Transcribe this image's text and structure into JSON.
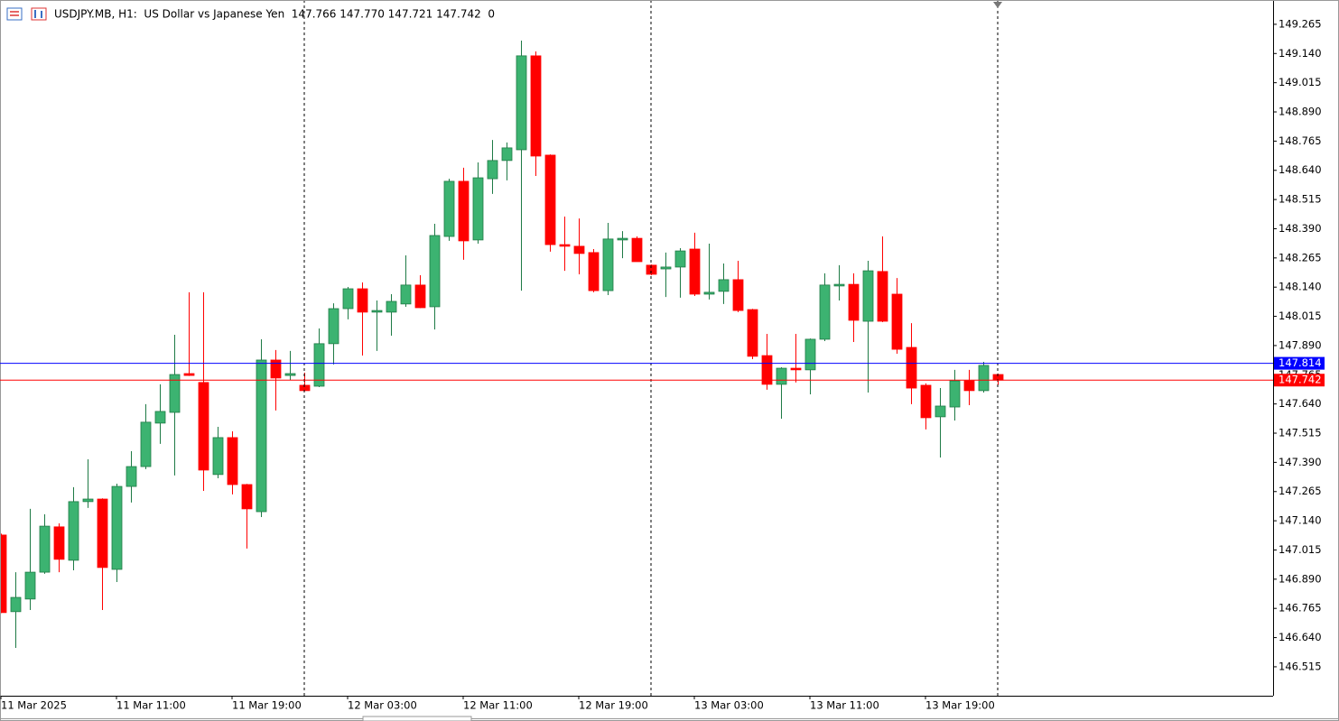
{
  "chart_data": {
    "type": "candlestick",
    "title": "USDJPY.MB, H1:  US Dollar vs Japanese Yen  147.766 147.770 147.721 147.742  0",
    "categories": [
      "11 Mar 2025",
      null,
      null,
      null,
      null,
      null,
      null,
      null,
      "11 Mar 11:00",
      null,
      null,
      null,
      null,
      null,
      null,
      null,
      "11 Mar 19:00",
      null,
      null,
      null,
      null,
      null,
      null,
      null,
      "12 Mar 03:00",
      null,
      null,
      null,
      null,
      null,
      null,
      null,
      "12 Mar 11:00",
      null,
      null,
      null,
      null,
      null,
      null,
      null,
      "12 Mar 19:00",
      null,
      null,
      null,
      null,
      null,
      null,
      null,
      "13 Mar 03:00",
      null,
      null,
      null,
      null,
      null,
      null,
      null,
      "13 Mar 11:00",
      null,
      null,
      null,
      null,
      null,
      null,
      null,
      "13 Mar 19:00",
      null,
      null,
      null,
      null,
      null
    ],
    "open": [
      147.079,
      146.751,
      146.805,
      146.92,
      147.114,
      146.971,
      147.222,
      147.233,
      146.932,
      147.287,
      147.372,
      147.558,
      147.604,
      147.77,
      147.732,
      147.338,
      147.496,
      147.295,
      147.179,
      147.828,
      147.762,
      147.72,
      147.716,
      147.898,
      148.048,
      148.133,
      148.033,
      148.033,
      148.068,
      148.149,
      148.056,
      148.357,
      148.593,
      148.342,
      148.604,
      148.682,
      148.728,
      149.13,
      148.705,
      148.322,
      148.315,
      148.288,
      148.125,
      148.342,
      148.349,
      148.234,
      148.218,
      148.226,
      148.303,
      148.11,
      148.122,
      148.172,
      148.044,
      147.847,
      147.724,
      147.793,
      147.786,
      147.917,
      148.145,
      148.152,
      147.994,
      148.207,
      148.11,
      147.882,
      147.72,
      147.585,
      147.627,
      147.739,
      147.697,
      147.766
    ],
    "high": [
      147.085,
      146.92,
      147.191,
      147.168,
      147.129,
      147.284,
      147.403,
      147.236,
      147.299,
      147.438,
      147.639,
      147.724,
      147.936,
      148.118,
      148.118,
      147.542,
      147.523,
      147.298,
      147.917,
      147.871,
      147.867,
      147.774,
      147.963,
      148.071,
      148.141,
      148.16,
      148.083,
      148.11,
      148.276,
      148.191,
      148.411,
      148.604,
      148.651,
      148.674,
      148.77,
      148.759,
      149.195,
      149.149,
      148.708,
      148.442,
      148.434,
      148.303,
      148.415,
      148.38,
      148.357,
      148.237,
      148.288,
      148.307,
      148.373,
      148.326,
      148.241,
      148.253,
      148.047,
      147.94,
      147.797,
      147.94,
      147.92,
      148.199,
      148.234,
      148.199,
      148.253,
      148.357,
      148.179,
      147.986,
      147.728,
      147.708,
      147.786,
      147.786,
      147.82,
      147.77
    ],
    "low": [
      146.745,
      146.596,
      146.758,
      146.913,
      146.92,
      146.928,
      147.195,
      146.758,
      146.878,
      147.218,
      147.361,
      147.469,
      147.334,
      147.76,
      147.268,
      147.322,
      147.253,
      147.021,
      147.156,
      147.612,
      147.743,
      147.695,
      147.712,
      147.809,
      148.002,
      147.847,
      147.867,
      147.932,
      148.056,
      148.05,
      147.959,
      148.338,
      148.257,
      148.326,
      148.539,
      148.597,
      148.125,
      148.616,
      148.292,
      148.21,
      148.195,
      148.118,
      148.106,
      148.264,
      148.249,
      148.191,
      148.098,
      148.095,
      148.102,
      148.087,
      148.068,
      148.033,
      147.832,
      147.701,
      147.577,
      147.732,
      147.681,
      147.909,
      148.083,
      147.905,
      147.689,
      147.99,
      147.855,
      147.639,
      147.531,
      147.411,
      147.569,
      147.635,
      147.689,
      147.721
    ],
    "close": [
      146.747,
      146.812,
      146.92,
      147.117,
      146.975,
      147.222,
      147.233,
      146.94,
      147.287,
      147.372,
      147.562,
      147.608,
      147.766,
      147.762,
      147.357,
      147.496,
      147.295,
      147.191,
      147.828,
      147.751,
      147.77,
      147.697,
      147.898,
      148.048,
      148.133,
      148.033,
      148.04,
      148.079,
      148.149,
      148.052,
      148.361,
      148.593,
      148.338,
      148.608,
      148.682,
      148.736,
      149.13,
      148.701,
      148.322,
      148.315,
      148.284,
      148.125,
      148.346,
      148.349,
      148.249,
      148.195,
      148.226,
      148.295,
      148.11,
      148.118,
      148.172,
      148.04,
      147.844,
      147.724,
      147.793,
      147.786,
      147.917,
      148.149,
      148.152,
      147.998,
      148.21,
      147.994,
      147.874,
      147.708,
      147.581,
      147.631,
      147.739,
      147.697,
      147.805,
      147.742
    ],
    "up_color": "#3cb371",
    "down_color": "#ff0000",
    "ylim": [
      146.395,
      149.369
    ],
    "yticks": [
      146.515,
      {
        "value": 146.64,
        "label": "146.640"
      },
      146.765,
      {
        "value": 146.89,
        "label": "146.890"
      },
      147.015,
      {
        "value": 147.14,
        "label": "147.140"
      },
      147.265,
      {
        "value": 147.39,
        "label": "147.390"
      },
      147.515,
      {
        "value": 147.64,
        "label": "147.640"
      },
      147.765,
      {
        "value": 147.89,
        "label": "147.890"
      },
      148.015,
      {
        "value": 148.14,
        "label": "148.140"
      },
      148.265,
      {
        "value": 148.39,
        "label": "148.390"
      },
      148.515,
      {
        "value": 148.64,
        "label": "148.640"
      },
      148.765,
      {
        "value": 148.89,
        "label": "148.890"
      },
      149.015,
      {
        "value": 149.14,
        "label": "149.140"
      },
      149.265
    ],
    "price_lines": [
      {
        "value": 147.814,
        "color": "#0000ff"
      },
      {
        "value": 147.742,
        "color": "#ff0000"
      }
    ]
  }
}
